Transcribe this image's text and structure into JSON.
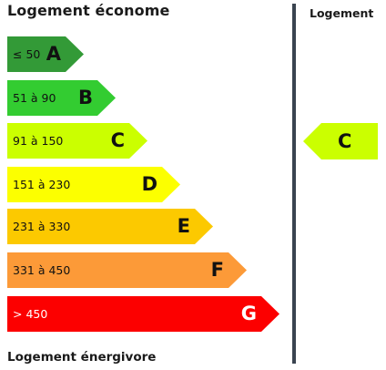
{
  "header": {
    "title_top": "Logement économe",
    "title_bottom": "Logement énergivore",
    "column_label": "Logement"
  },
  "bands": [
    {
      "range": "≤ 50",
      "letter": "A",
      "color": "#339a37"
    },
    {
      "range": "51 à 90",
      "letter": "B",
      "color": "#33cc31"
    },
    {
      "range": "91 à 150",
      "letter": "C",
      "color": "#cbff00"
    },
    {
      "range": "151 à 230",
      "letter": "D",
      "color": "#fcff00"
    },
    {
      "range": "231 à 330",
      "letter": "E",
      "color": "#fcc900"
    },
    {
      "range": "331 à 450",
      "letter": "F",
      "color": "#fc9a38"
    },
    {
      "range": "> 450",
      "letter": "G",
      "color": "#fc0000"
    }
  ],
  "current_rating": {
    "letter": "C",
    "color": "#cbff00"
  }
}
